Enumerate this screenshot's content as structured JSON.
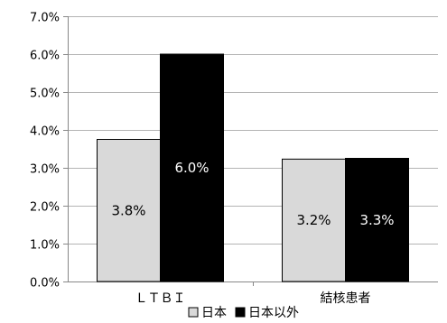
{
  "chart_data": {
    "type": "bar",
    "categories": [
      "ＬＴＢＩ",
      "結核患者"
    ],
    "series": [
      {
        "name": "日本",
        "values": [
          3.75,
          3.23
        ],
        "labels": [
          "3.8%",
          "3.2%"
        ],
        "color": "#d9d9d9",
        "label_color": "#000000"
      },
      {
        "name": "日本以外",
        "values": [
          6.0,
          3.25
        ],
        "labels": [
          "6.0%",
          "3.3%"
        ],
        "color": "#000000",
        "label_color": "#ffffff"
      }
    ],
    "title": "",
    "xlabel": "",
    "ylabel": "",
    "ylim": [
      0,
      7
    ],
    "yticks": [
      "0.0%",
      "1.0%",
      "2.0%",
      "3.0%",
      "4.0%",
      "5.0%",
      "6.0%",
      "7.0%"
    ],
    "grid": true,
    "legend": "bottom"
  }
}
